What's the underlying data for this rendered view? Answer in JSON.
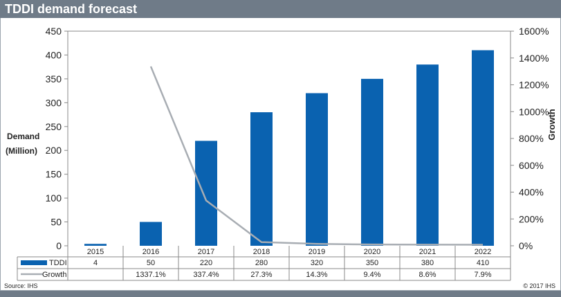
{
  "title": "TDDI demand forecast",
  "source": "Source: IHS",
  "copyright": "© 2017 IHS",
  "chart_data": {
    "type": "bar",
    "title": "TDDI demand forecast",
    "categories": [
      "2015",
      "2016",
      "2017",
      "2018",
      "2019",
      "2020",
      "2021",
      "2022"
    ],
    "series": [
      {
        "name": "TDDI",
        "type": "bar",
        "axis": "left",
        "color": "#0a62b0",
        "values": [
          4,
          50,
          220,
          280,
          320,
          350,
          380,
          410
        ],
        "labels": [
          "4",
          "50",
          "220",
          "280",
          "320",
          "350",
          "380",
          "410"
        ]
      },
      {
        "name": "Growth",
        "type": "line",
        "axis": "right",
        "color": "#a8adb3",
        "values": [
          null,
          1337.1,
          337.4,
          27.3,
          14.3,
          9.4,
          8.6,
          7.9
        ],
        "labels": [
          "",
          "1337.1%",
          "337.4%",
          "27.3%",
          "14.3%",
          "9.4%",
          "8.6%",
          "7.9%"
        ]
      }
    ],
    "ylabel": "Demand (Million)",
    "ylabel_lines": [
      "Demand",
      "(Million)"
    ],
    "y2label": "Growth",
    "ylim": [
      0,
      450
    ],
    "yticks": [
      0,
      50,
      100,
      150,
      200,
      250,
      300,
      350,
      400,
      450
    ],
    "y2lim": [
      0,
      1600
    ],
    "y2ticks": [
      "0%",
      "200%",
      "400%",
      "600%",
      "800%",
      "1000%",
      "1200%",
      "1400%",
      "1600%"
    ],
    "legend": "table-bottom"
  }
}
